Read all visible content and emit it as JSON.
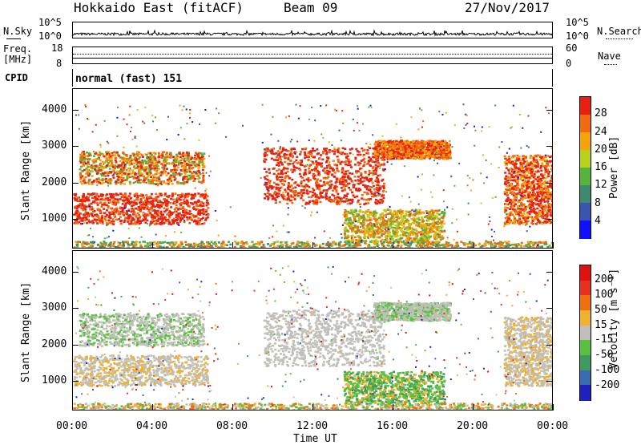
{
  "header": {
    "station": "Hokkaido East (fitACF)",
    "beam": "Beam 09",
    "date": "27/Nov/2017"
  },
  "sky_panel": {
    "left_label": "N.Sky",
    "left_ticks": [
      "10^5",
      "10^0"
    ],
    "right_ticks": [
      "10^5",
      "10^0"
    ],
    "right_label": "N.Search"
  },
  "freq_panel": {
    "left_label_1": "Freq.",
    "left_label_2": "[MHz]",
    "left_ticks": [
      "18",
      "8"
    ],
    "right_ticks": [
      "60",
      "0"
    ],
    "right_label": "Nave"
  },
  "cpid": {
    "label": "CPID",
    "value": "normal (fast) 151"
  },
  "chart_data": [
    {
      "type": "heatmap",
      "ylabel": "Slant Range [km]",
      "y_ticks": [
        "1000",
        "2000",
        "3000",
        "4000"
      ],
      "ylim": [
        180,
        4600
      ],
      "xlim": [
        0,
        24
      ],
      "x_ticks": [
        "00:00",
        "04:00",
        "08:00",
        "12:00",
        "16:00",
        "20:00",
        "00:00"
      ],
      "colorbar": {
        "label": "Power [dB]",
        "ticks": [
          "4",
          "8",
          "12",
          "16",
          "20",
          "24",
          "28"
        ],
        "colors": [
          "#1010ff",
          "#3a55b0",
          "#3e8a6e",
          "#56b33c",
          "#b8d21c",
          "#f5a30a",
          "#f06a10",
          "#e82010"
        ]
      }
    },
    {
      "type": "heatmap",
      "ylabel": "Slant Range [km]",
      "y_ticks": [
        "1000",
        "2000",
        "3000",
        "4000"
      ],
      "ylim": [
        180,
        4600
      ],
      "xlim": [
        0,
        24
      ],
      "x_ticks": [
        "00:00",
        "04:00",
        "08:00",
        "12:00",
        "16:00",
        "20:00",
        "00:00"
      ],
      "xlabel": "Time UT",
      "colorbar": {
        "label": "Velocity [m s⁻¹]",
        "ticks": [
          "200",
          "100",
          "50",
          "15",
          "-15",
          "-50",
          "-100",
          "-200"
        ],
        "colors": [
          "#2020c0",
          "#3a6ab0",
          "#3e9a60",
          "#5ac040",
          "#c0c0b8",
          "#f0b030",
          "#f07010",
          "#e83020",
          "#e01010"
        ]
      }
    }
  ]
}
